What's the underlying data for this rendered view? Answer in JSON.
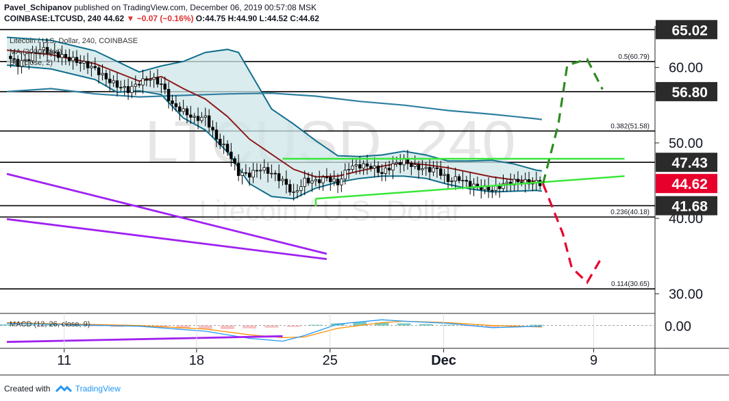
{
  "header": {
    "author": "Pavel_Schipanov",
    "published_text": "published on TradingView.com, December 06, 2019 00:57:08 MSK",
    "symbol_line": "COINBASE:LTCUSD, 240",
    "price": "44.62",
    "change": "▼ −0.07 (−0.16%)",
    "ohlc": "O:44.75 H:44.90 L:44.52 C:44.62"
  },
  "overlay": {
    "series_title": "Litecoin / U.S. Dollar, 240, COINBASE",
    "ma_label": "MA (200, close)",
    "bb_label": "BB (close, 2)",
    "macd_label": "MACD (12, 26, close, 9)"
  },
  "watermark": {
    "big": "LTCUSD, 240",
    "sub": "Litecoin / U.S. Dollar"
  },
  "footer": {
    "created_with": "Created with",
    "brand": "TradingView"
  },
  "colors": {
    "candle": "#000000",
    "ma": "#8b1a1a",
    "bollinger": "#0f6e8c",
    "bollinger_fill": "#cfe5e8",
    "ma200": "#2f7fa0",
    "support_resistance": "#39e639",
    "wedge": "#a020f0",
    "scenario_up": "#2e8b22",
    "scenario_down": "#e8002d",
    "fib_line": "#000000",
    "price_badge": "#e8002d",
    "level_badge": "#2b2b2b"
  },
  "chart_data": {
    "type": "candlestick",
    "symbol": "COINBASE:LTCUSD",
    "interval": "240",
    "x_ticks": [
      "11",
      "18",
      "25",
      "Dec",
      "9"
    ],
    "y_ticks": [
      "30.00",
      "40.00",
      "50.00",
      "60.00"
    ],
    "y_range": [
      27.4,
      65.5
    ],
    "price_badges": [
      {
        "label": "65.02",
        "value": 65.02
      },
      {
        "label": "56.80",
        "value": 56.8
      },
      {
        "label": "47.43",
        "value": 47.43
      },
      {
        "label": "44.62",
        "value": 44.62,
        "current": true
      },
      {
        "label": "41.68",
        "value": 41.68
      }
    ],
    "fib_levels": [
      {
        "label": "0.5(60.79)",
        "ratio": 0.5,
        "value": 60.79
      },
      {
        "label": "0.382(51.58)",
        "ratio": 0.382,
        "value": 51.58
      },
      {
        "label": "0.236(40.18)",
        "ratio": 0.236,
        "value": 40.18
      },
      {
        "label": "0.114(30.65)",
        "ratio": 0.114,
        "value": 30.65
      }
    ],
    "horizontal_levels": [
      65.02,
      60.79,
      56.8,
      51.58,
      47.43,
      41.68,
      40.18,
      30.65
    ],
    "close_path": [
      [
        0,
        61.5
      ],
      [
        0.5,
        60.5
      ],
      [
        1,
        61.2
      ],
      [
        1.5,
        62.5
      ],
      [
        2,
        62.0
      ],
      [
        2.5,
        61.5
      ],
      [
        3,
        61.0
      ],
      [
        3.5,
        60.5
      ],
      [
        4,
        59.8
      ],
      [
        4.5,
        58.5
      ],
      [
        5,
        57.6
      ],
      [
        5.5,
        57.0
      ],
      [
        6,
        58.0
      ],
      [
        6.5,
        58.6
      ],
      [
        7,
        57.8
      ],
      [
        7.5,
        55.0
      ],
      [
        8,
        54.2
      ],
      [
        8.5,
        53.2
      ],
      [
        9,
        53.4
      ],
      [
        9.5,
        50.5
      ],
      [
        10,
        49.0
      ],
      [
        10.5,
        46.0
      ],
      [
        11,
        45.8
      ],
      [
        11.5,
        46.6
      ],
      [
        12,
        46.0
      ],
      [
        12.5,
        45.0
      ],
      [
        13,
        43.2
      ],
      [
        13.5,
        45.0
      ],
      [
        14,
        44.9
      ],
      [
        14.5,
        45.4
      ],
      [
        15,
        44.6
      ],
      [
        15.5,
        46.8
      ],
      [
        16,
        47.0
      ],
      [
        16.5,
        46.9
      ],
      [
        17,
        46.0
      ],
      [
        17.5,
        47.1
      ],
      [
        18,
        47.6
      ],
      [
        18.5,
        46.8
      ],
      [
        19,
        46.5
      ],
      [
        19.5,
        46.5
      ],
      [
        20,
        45.0
      ],
      [
        20.5,
        45.3
      ],
      [
        21,
        44.4
      ],
      [
        21.5,
        44.1
      ],
      [
        22,
        43.8
      ],
      [
        22.5,
        44.5
      ],
      [
        23,
        44.9
      ],
      [
        23.5,
        44.8
      ],
      [
        24,
        44.75
      ],
      [
        24.25,
        44.62
      ]
    ],
    "ma200_path": [
      [
        0,
        56.8
      ],
      [
        2,
        57.2
      ],
      [
        4,
        56.5
      ],
      [
        6,
        56.1
      ],
      [
        8,
        56.3
      ],
      [
        10,
        56.5
      ],
      [
        12,
        56.6
      ],
      [
        14,
        56.2
      ],
      [
        16,
        55.5
      ],
      [
        18,
        55.0
      ],
      [
        20,
        54.3
      ],
      [
        22,
        53.8
      ],
      [
        24,
        53.2
      ],
      [
        24.25,
        53.1
      ]
    ],
    "ma_path": [
      [
        0,
        62.3
      ],
      [
        2,
        61.7
      ],
      [
        4,
        60.5
      ],
      [
        6,
        58.2
      ],
      [
        7,
        58.8
      ],
      [
        8,
        57.2
      ],
      [
        9,
        55.8
      ],
      [
        10,
        53.5
      ],
      [
        11,
        50.5
      ],
      [
        12,
        48.5
      ],
      [
        13,
        46.5
      ],
      [
        14,
        45.5
      ],
      [
        15,
        45.6
      ],
      [
        16,
        46.3
      ],
      [
        17,
        46.9
      ],
      [
        18,
        47.4
      ],
      [
        19,
        47.1
      ],
      [
        20,
        46.7
      ],
      [
        21,
        46.1
      ],
      [
        22,
        45.5
      ],
      [
        23,
        45.1
      ],
      [
        24,
        44.9
      ],
      [
        24.25,
        44.8
      ]
    ],
    "bb_upper": [
      [
        0,
        64.0
      ],
      [
        2,
        63.6
      ],
      [
        4,
        62.2
      ],
      [
        5,
        60.8
      ],
      [
        6,
        59.4
      ],
      [
        7,
        60.2
      ],
      [
        8,
        60.8
      ],
      [
        9,
        62.0
      ],
      [
        10,
        62.4
      ],
      [
        10.5,
        62.0
      ],
      [
        11,
        59.5
      ],
      [
        12,
        54.5
      ],
      [
        13,
        52.5
      ],
      [
        14,
        50.3
      ],
      [
        15,
        48.3
      ],
      [
        16,
        48.2
      ],
      [
        17,
        48.4
      ],
      [
        18,
        48.9
      ],
      [
        19,
        48.4
      ],
      [
        20,
        47.6
      ],
      [
        21,
        47.6
      ],
      [
        22,
        47.7
      ],
      [
        23,
        47.2
      ],
      [
        24,
        46.4
      ],
      [
        24.25,
        46.3
      ]
    ],
    "bb_lower": [
      [
        0,
        60.3
      ],
      [
        2,
        59.8
      ],
      [
        4,
        58.4
      ],
      [
        5,
        56.7
      ],
      [
        6,
        56.9
      ],
      [
        7,
        56.4
      ],
      [
        8,
        53.3
      ],
      [
        9,
        51.7
      ],
      [
        10,
        48.8
      ],
      [
        11,
        44.6
      ],
      [
        12,
        42.9
      ],
      [
        13,
        42.6
      ],
      [
        14,
        44.0
      ],
      [
        15,
        44.8
      ],
      [
        16,
        45.3
      ],
      [
        17,
        45.6
      ],
      [
        18,
        45.6
      ],
      [
        19,
        45.3
      ],
      [
        20,
        44.5
      ],
      [
        21,
        43.9
      ],
      [
        22,
        43.5
      ],
      [
        23,
        43.6
      ],
      [
        24,
        43.7
      ],
      [
        24.25,
        43.6
      ]
    ],
    "triangle_upper": [
      [
        12.5,
        47.9
      ],
      [
        28,
        47.9
      ]
    ],
    "triangle_lower": [
      [
        14.0,
        42.6
      ],
      [
        28,
        45.6
      ]
    ],
    "wedge_lines": [
      [
        [
          0,
          45.9
        ],
        [
          14.5,
          35.3
        ]
      ],
      [
        [
          0,
          39.9
        ],
        [
          14.5,
          34.6
        ]
      ]
    ],
    "scenario_up": [
      [
        24.3,
        44.6
      ],
      [
        25.0,
        52.5
      ],
      [
        25.4,
        60.3
      ],
      [
        26.3,
        61.1
      ],
      [
        27.0,
        57.1
      ]
    ],
    "scenario_down": [
      [
        24.3,
        44.6
      ],
      [
        25.2,
        38.0
      ],
      [
        25.6,
        33.5
      ],
      [
        26.3,
        31.5
      ],
      [
        27.0,
        35.0
      ]
    ],
    "macd": {
      "label": "MACD (12, 26, close, 9)",
      "y_tick": "0.00",
      "range": [
        -3,
        1.5
      ],
      "macd_line": [
        [
          0,
          0.3
        ],
        [
          3,
          0.1
        ],
        [
          6,
          -0.1
        ],
        [
          9,
          -0.8
        ],
        [
          11,
          -1.8
        ],
        [
          12.5,
          -2.2
        ],
        [
          13.5,
          -1.4
        ],
        [
          15,
          0.2
        ],
        [
          17,
          0.8
        ],
        [
          18,
          0.6
        ],
        [
          20,
          0.3
        ],
        [
          22,
          -0.3
        ],
        [
          24.25,
          -0.1
        ]
      ],
      "signal_line": [
        [
          0,
          0.4
        ],
        [
          3,
          0.2
        ],
        [
          6,
          0.0
        ],
        [
          9,
          -0.5
        ],
        [
          11,
          -1.3
        ],
        [
          12.5,
          -1.7
        ],
        [
          13.5,
          -1.6
        ],
        [
          15,
          -0.4
        ],
        [
          17,
          0.4
        ],
        [
          18,
          0.6
        ],
        [
          20,
          0.4
        ],
        [
          22,
          0.0
        ],
        [
          24.25,
          -0.2
        ]
      ],
      "histogram": [
        0.15,
        0.1,
        0.1,
        0.0,
        -0.1,
        -0.2,
        -0.1,
        -0.3,
        -0.4,
        -0.5,
        -0.5,
        -0.4,
        -0.3,
        -0.2,
        0.1,
        0.3,
        0.5,
        0.4,
        0.3,
        0.2,
        0.1,
        -0.1,
        -0.2,
        -0.25,
        0.1
      ],
      "trendline": [
        [
          0,
          -2.3
        ],
        [
          12.5,
          -1.5
        ]
      ]
    }
  }
}
